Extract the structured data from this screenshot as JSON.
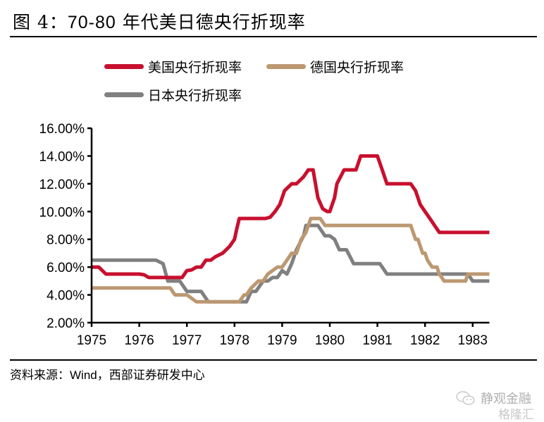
{
  "header": {
    "title_prefix": "图 4：",
    "title_range": "70-80",
    "title_suffix": " 年代美日德央行折现率"
  },
  "footer": {
    "source_label": "资料来源：",
    "source_text": "Wind，西部证券研发中心",
    "watermark": "静观金融",
    "watermark2": "格隆汇"
  },
  "colors": {
    "us": "#c8102e",
    "de": "#bc9871",
    "jp": "#808080"
  },
  "chart_data": {
    "type": "line",
    "title": "70-80 年代美日德央行折现率",
    "xlabel": "",
    "ylabel": "",
    "xlim": [
      1975,
      1983.35
    ],
    "ylim": [
      2,
      16
    ],
    "yticks": [
      2,
      4,
      6,
      8,
      10,
      12,
      14,
      16
    ],
    "ytick_labels": [
      "2.00%",
      "4.00%",
      "6.00%",
      "8.00%",
      "10.00%",
      "12.00%",
      "14.00%",
      "16.00%"
    ],
    "xticks": [
      1975,
      1976,
      1977,
      1978,
      1979,
      1980,
      1981,
      1982,
      1983
    ],
    "xtick_labels": [
      "1975",
      "1976",
      "1977",
      "1978",
      "1979",
      "1980",
      "1981",
      "1982",
      "1983"
    ],
    "grid": false,
    "legend_position": "top",
    "series": [
      {
        "name": "美国央行折现率",
        "key": "us",
        "x": [
          1975.0,
          1975.15,
          1975.3,
          1975.45,
          1975.6,
          1976.0,
          1976.1,
          1976.2,
          1976.3,
          1976.5,
          1976.6,
          1976.75,
          1976.9,
          1977.0,
          1977.1,
          1977.2,
          1977.3,
          1977.4,
          1977.5,
          1977.6,
          1977.75,
          1977.9,
          1978.0,
          1978.05,
          1978.1,
          1978.2,
          1978.5,
          1978.65,
          1978.75,
          1978.85,
          1978.95,
          1979.05,
          1979.2,
          1979.3,
          1979.45,
          1979.55,
          1979.65,
          1979.75,
          1979.85,
          1979.95,
          1980.0,
          1980.1,
          1980.15,
          1980.3,
          1980.45,
          1980.55,
          1980.65,
          1980.85,
          1981.0,
          1981.1,
          1981.2,
          1981.35,
          1981.5,
          1981.7,
          1981.8,
          1981.9,
          1982.0,
          1982.1,
          1982.2,
          1982.3,
          1982.4,
          1982.6,
          1983.0,
          1983.35
        ],
        "values": [
          6.0,
          6.0,
          5.5,
          5.5,
          5.5,
          5.5,
          5.45,
          5.25,
          5.25,
          5.25,
          5.25,
          5.25,
          5.25,
          5.75,
          5.8,
          6.0,
          6.0,
          6.5,
          6.5,
          6.75,
          7.0,
          7.5,
          8.0,
          8.8,
          9.5,
          9.5,
          9.5,
          9.5,
          9.6,
          10.0,
          10.5,
          11.5,
          12.0,
          12.0,
          12.5,
          13.0,
          13.0,
          11.0,
          10.2,
          10.0,
          10.0,
          11.0,
          12.0,
          13.0,
          13.0,
          13.0,
          14.0,
          14.0,
          14.0,
          13.0,
          12.0,
          12.0,
          12.0,
          12.0,
          11.5,
          10.5,
          10.0,
          9.5,
          9.0,
          8.5,
          8.5,
          8.5,
          8.5,
          8.5
        ]
      },
      {
        "name": "德国央行折现率",
        "key": "de",
        "x": [
          1975.0,
          1976.2,
          1976.5,
          1976.65,
          1976.75,
          1976.85,
          1977.0,
          1977.1,
          1977.2,
          1977.3,
          1977.45,
          1977.6,
          1978.0,
          1978.1,
          1978.2,
          1978.25,
          1978.35,
          1978.5,
          1978.6,
          1978.7,
          1978.9,
          1979.0,
          1979.1,
          1979.2,
          1979.3,
          1979.4,
          1979.5,
          1979.6,
          1979.7,
          1979.8,
          1979.9,
          1980.0,
          1981.0,
          1981.7,
          1981.8,
          1981.85,
          1981.95,
          1982.0,
          1982.05,
          1982.15,
          1982.25,
          1982.3,
          1982.4,
          1982.5,
          1982.6,
          1982.85,
          1982.9,
          1983.35
        ],
        "values": [
          4.5,
          4.5,
          4.5,
          4.5,
          4.0,
          4.0,
          4.0,
          3.75,
          3.5,
          3.5,
          3.5,
          3.5,
          3.5,
          3.5,
          4.0,
          4.0,
          4.5,
          5.0,
          5.0,
          5.5,
          6.0,
          6.0,
          6.5,
          7.0,
          7.0,
          8.0,
          8.5,
          9.5,
          9.5,
          9.5,
          9.0,
          9.0,
          9.0,
          9.0,
          8.0,
          8.0,
          7.0,
          7.0,
          6.5,
          6.0,
          6.0,
          5.5,
          5.0,
          5.0,
          5.0,
          5.0,
          5.5,
          5.5
        ]
      },
      {
        "name": "日本央行折现率",
        "key": "jp",
        "x": [
          1975.0,
          1976.35,
          1976.5,
          1976.6,
          1976.75,
          1976.85,
          1977.0,
          1977.1,
          1977.25,
          1977.3,
          1977.45,
          1977.6,
          1978.0,
          1978.25,
          1978.35,
          1978.45,
          1978.6,
          1978.7,
          1978.8,
          1978.9,
          1979.0,
          1979.1,
          1979.2,
          1979.3,
          1979.45,
          1979.5,
          1979.7,
          1979.75,
          1979.85,
          1979.9,
          1980.0,
          1980.1,
          1980.2,
          1980.3,
          1980.35,
          1980.5,
          1981.0,
          1981.05,
          1981.1,
          1981.2,
          1981.9,
          1982.0,
          1982.3,
          1982.8,
          1982.9,
          1983.0,
          1983.35
        ],
        "values": [
          6.5,
          6.5,
          6.25,
          5.0,
          5.0,
          5.0,
          4.25,
          4.25,
          4.25,
          4.25,
          3.5,
          3.5,
          3.5,
          3.5,
          4.25,
          4.25,
          5.0,
          5.0,
          5.25,
          5.25,
          5.75,
          5.5,
          6.25,
          7.25,
          8.25,
          9.0,
          9.0,
          9.0,
          8.5,
          8.25,
          8.25,
          8.0,
          7.25,
          7.25,
          7.25,
          6.25,
          6.25,
          6.25,
          6.0,
          5.5,
          5.5,
          5.5,
          5.5,
          5.5,
          5.5,
          5.0,
          5.0
        ]
      }
    ]
  }
}
